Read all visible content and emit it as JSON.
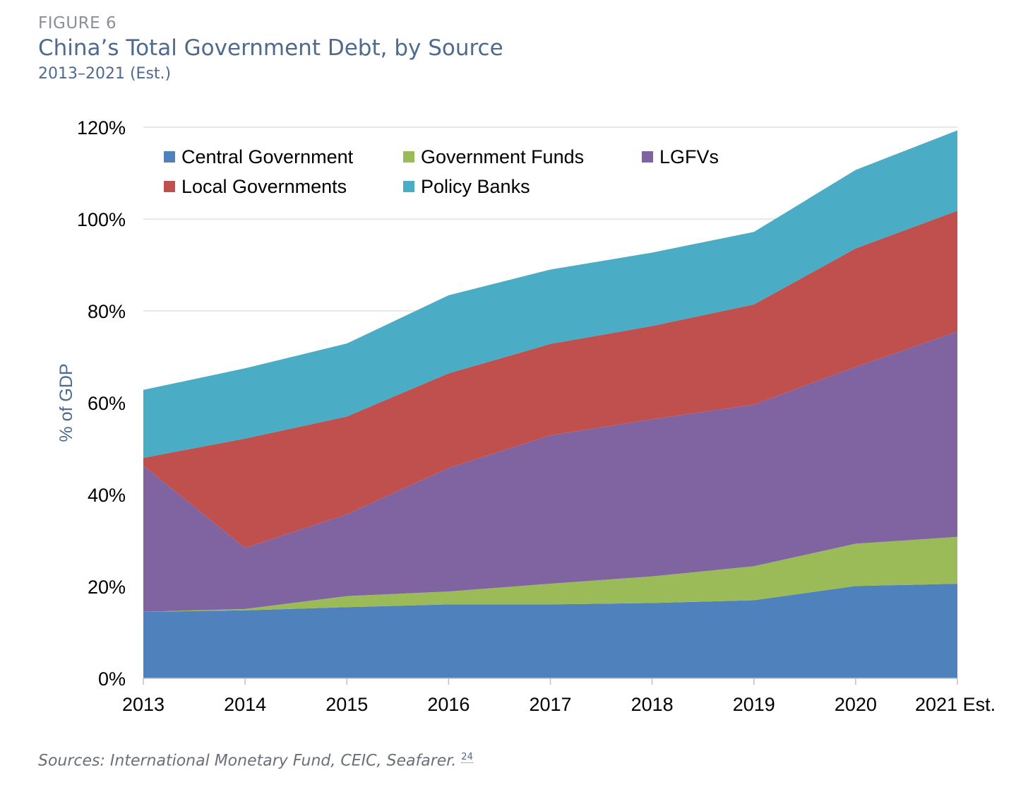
{
  "figure_label": "FIGURE 6",
  "title": "China’s Total Government Debt, by Source",
  "subtitle": "2013–2021 (Est.)",
  "sources": "Sources: International Monetary Fund, CEIC, Seafarer.",
  "footnote": "24",
  "chart_data": {
    "type": "area",
    "stacked": true,
    "categories": [
      "2013",
      "2014",
      "2015",
      "2016",
      "2017",
      "2018",
      "2019",
      "2020",
      "2021 Est."
    ],
    "ylabel": "% of GDP",
    "ylim": [
      0,
      120
    ],
    "yticks": [
      "0%",
      "20%",
      "40%",
      "60%",
      "80%",
      "100%",
      "120%"
    ],
    "ytick_values": [
      0,
      20,
      40,
      60,
      80,
      100,
      120
    ],
    "grid": true,
    "legend_position": "top-left",
    "series": [
      {
        "name": "Central Government",
        "color": "#4f81bd",
        "values": [
          14.5,
          14.8,
          15.5,
          16.1,
          16.1,
          16.4,
          17.0,
          20.1,
          20.6
        ]
      },
      {
        "name": "Government Funds",
        "color": "#9bbb59",
        "values": [
          0.0,
          0.3,
          2.4,
          2.8,
          4.5,
          5.8,
          7.4,
          9.2,
          10.2
        ]
      },
      {
        "name": "LGFVs",
        "color": "#8064a2",
        "values": [
          31.8,
          13.3,
          17.8,
          26.9,
          32.3,
          34.2,
          35.2,
          38.5,
          44.7
        ]
      },
      {
        "name": "Local Governments",
        "color": "#c0504d",
        "values": [
          1.7,
          23.8,
          21.3,
          20.6,
          19.9,
          20.3,
          21.8,
          25.8,
          26.3
        ]
      },
      {
        "name": "Policy Banks",
        "color": "#4bacc6",
        "values": [
          14.8,
          15.3,
          15.9,
          17.0,
          16.2,
          16.0,
          15.8,
          17.1,
          17.5
        ]
      }
    ]
  }
}
